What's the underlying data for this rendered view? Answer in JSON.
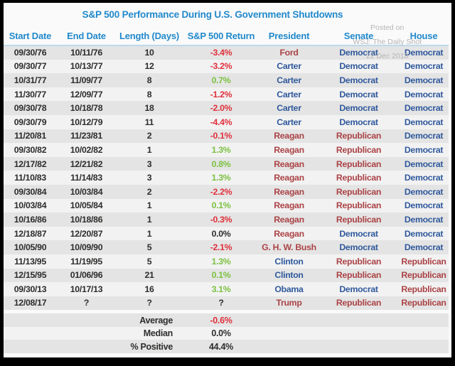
{
  "chart_data": {
    "type": "table",
    "title": "S&P 500 Performance During U.S. Government Shutdowns",
    "columns": [
      "Start Date",
      "End Date",
      "Length (Days)",
      "S&P 500 Return",
      "President",
      "Senate",
      "House"
    ],
    "rows": [
      {
        "start_date": "09/30/76",
        "end_date": "10/11/76",
        "length_days": "10",
        "sp500_return": "-3.4%",
        "return_tone": "negative",
        "president": "Ford",
        "president_party": "rep",
        "senate": "Democrat",
        "house": "Democrat"
      },
      {
        "start_date": "09/30/77",
        "end_date": "10/13/77",
        "length_days": "12",
        "sp500_return": "-3.2%",
        "return_tone": "negative",
        "president": "Carter",
        "president_party": "dem",
        "senate": "Democrat",
        "house": "Democrat"
      },
      {
        "start_date": "10/31/77",
        "end_date": "11/09/77",
        "length_days": "8",
        "sp500_return": "0.7%",
        "return_tone": "positive",
        "president": "Carter",
        "president_party": "dem",
        "senate": "Democrat",
        "house": "Democrat"
      },
      {
        "start_date": "11/30/77",
        "end_date": "12/09/77",
        "length_days": "8",
        "sp500_return": "-1.2%",
        "return_tone": "negative",
        "president": "Carter",
        "president_party": "dem",
        "senate": "Democrat",
        "house": "Democrat"
      },
      {
        "start_date": "09/30/78",
        "end_date": "10/18/78",
        "length_days": "18",
        "sp500_return": "-2.0%",
        "return_tone": "negative",
        "president": "Carter",
        "president_party": "dem",
        "senate": "Democrat",
        "house": "Democrat"
      },
      {
        "start_date": "09/30/79",
        "end_date": "10/12/79",
        "length_days": "11",
        "sp500_return": "-4.4%",
        "return_tone": "negative",
        "president": "Carter",
        "president_party": "dem",
        "senate": "Democrat",
        "house": "Democrat"
      },
      {
        "start_date": "11/20/81",
        "end_date": "11/23/81",
        "length_days": "2",
        "sp500_return": "-0.1%",
        "return_tone": "negative",
        "president": "Reagan",
        "president_party": "rep",
        "senate": "Republican",
        "house": "Democrat"
      },
      {
        "start_date": "09/30/82",
        "end_date": "10/02/82",
        "length_days": "1",
        "sp500_return": "1.3%",
        "return_tone": "positive",
        "president": "Reagan",
        "president_party": "rep",
        "senate": "Republican",
        "house": "Democrat"
      },
      {
        "start_date": "12/17/82",
        "end_date": "12/21/82",
        "length_days": "3",
        "sp500_return": "0.8%",
        "return_tone": "positive",
        "president": "Reagan",
        "president_party": "rep",
        "senate": "Republican",
        "house": "Democrat"
      },
      {
        "start_date": "11/10/83",
        "end_date": "11/14/83",
        "length_days": "3",
        "sp500_return": "1.3%",
        "return_tone": "positive",
        "president": "Reagan",
        "president_party": "rep",
        "senate": "Republican",
        "house": "Democrat"
      },
      {
        "start_date": "09/30/84",
        "end_date": "10/03/84",
        "length_days": "2",
        "sp500_return": "-2.2%",
        "return_tone": "negative",
        "president": "Reagan",
        "president_party": "rep",
        "senate": "Republican",
        "house": "Democrat"
      },
      {
        "start_date": "10/03/84",
        "end_date": "10/05/84",
        "length_days": "1",
        "sp500_return": "0.1%",
        "return_tone": "positive",
        "president": "Reagan",
        "president_party": "rep",
        "senate": "Republican",
        "house": "Democrat"
      },
      {
        "start_date": "10/16/86",
        "end_date": "10/18/86",
        "length_days": "1",
        "sp500_return": "-0.3%",
        "return_tone": "negative",
        "president": "Reagan",
        "president_party": "rep",
        "senate": "Republican",
        "house": "Democrat"
      },
      {
        "start_date": "12/18/87",
        "end_date": "12/20/87",
        "length_days": "1",
        "sp500_return": "0.0%",
        "return_tone": "neutral",
        "president": "Reagan",
        "president_party": "rep",
        "senate": "Democrat",
        "house": "Democrat"
      },
      {
        "start_date": "10/05/90",
        "end_date": "10/09/90",
        "length_days": "5",
        "sp500_return": "-2.1%",
        "return_tone": "negative",
        "president": "G. H. W. Bush",
        "president_party": "rep",
        "senate": "Democrat",
        "house": "Democrat"
      },
      {
        "start_date": "11/13/95",
        "end_date": "11/19/95",
        "length_days": "5",
        "sp500_return": "1.3%",
        "return_tone": "positive",
        "president": "Clinton",
        "president_party": "dem",
        "senate": "Republican",
        "house": "Republican"
      },
      {
        "start_date": "12/15/95",
        "end_date": "01/06/96",
        "length_days": "21",
        "sp500_return": "0.1%",
        "return_tone": "positive",
        "president": "Clinton",
        "president_party": "dem",
        "senate": "Republican",
        "house": "Republican"
      },
      {
        "start_date": "09/30/13",
        "end_date": "10/17/13",
        "length_days": "16",
        "sp500_return": "3.1%",
        "return_tone": "positive",
        "president": "Obama",
        "president_party": "dem",
        "senate": "Democrat",
        "house": "Republican"
      },
      {
        "start_date": "12/08/17",
        "end_date": "?",
        "length_days": "?",
        "sp500_return": "?",
        "return_tone": "neutral",
        "president": "Trump",
        "president_party": "rep",
        "senate": "Republican",
        "house": "Republican"
      }
    ],
    "summary": [
      {
        "label": "Average",
        "value": "-0.6%",
        "tone": "negative"
      },
      {
        "label": "Median",
        "value": "0.0%",
        "tone": "neutral"
      },
      {
        "label": "% Positive",
        "value": "44.4%",
        "tone": "neutral"
      }
    ]
  },
  "watermark": {
    "line1": "Posted on",
    "line2": "WSJ: The Daily Shot",
    "line3": "22 Dec 2018"
  },
  "colors": {
    "header_blue": "#2189cc",
    "democrat_blue": "#30599c",
    "republican_red": "#ab4346",
    "negative_red": "#e0303c",
    "positive_green": "#7cc142",
    "neutral_dark": "#2e2d2c"
  }
}
